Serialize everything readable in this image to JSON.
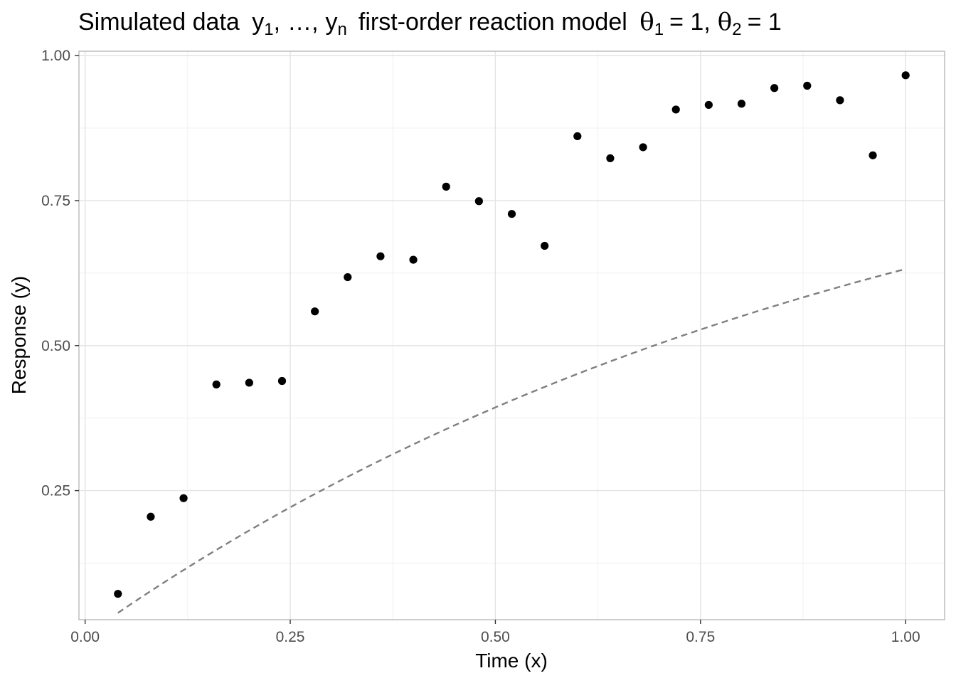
{
  "chart_data": {
    "type": "scatter",
    "title": {
      "prefix": "Simulated data ",
      "y_symbol": "y",
      "first_index": "1",
      "ellipsis": "…",
      "last_index": "n",
      "middle": "first-order reaction model ",
      "theta_symbol": "θ",
      "theta1_index": "1",
      "theta1_value": "= 1",
      "theta2_index": "2",
      "theta2_value": "= 1",
      "comma": ","
    },
    "xlabel": "Time (x)",
    "ylabel": "Response (y)",
    "xlim": [
      -0.0075,
      1.0475
    ],
    "ylim": [
      0.0275,
      1.0075
    ],
    "x_ticks": [
      0,
      0.25,
      0.5,
      0.75,
      1
    ],
    "x_tick_labels": [
      "0.00",
      "0.25",
      "0.50",
      "0.75",
      "1.00"
    ],
    "y_ticks": [
      0.25,
      0.5,
      0.75,
      1
    ],
    "y_tick_labels": [
      "0.25",
      "0.50",
      "0.75",
      "1.00"
    ],
    "grid": true,
    "points": {
      "x": [
        0.04,
        0.08,
        0.12,
        0.16,
        0.2,
        0.24,
        0.28,
        0.32,
        0.36,
        0.4,
        0.44,
        0.48,
        0.52,
        0.56,
        0.6,
        0.64,
        0.68,
        0.72,
        0.76,
        0.8,
        0.84,
        0.88,
        0.92,
        0.96,
        1.0
      ],
      "y": [
        0.072,
        0.205,
        0.237,
        0.433,
        0.436,
        0.439,
        0.559,
        0.618,
        0.654,
        0.648,
        0.774,
        0.749,
        0.727,
        0.672,
        0.861,
        0.823,
        0.842,
        0.907,
        0.915,
        0.917,
        0.944,
        0.948,
        0.923,
        0.828,
        0.966
      ],
      "color": "#000000"
    },
    "fitted_curve": {
      "model": "y = 1 - exp(-theta2 * x)",
      "x_range": [
        0.04,
        1.0
      ],
      "style": "dashed",
      "color": "#7f7f7f"
    }
  }
}
